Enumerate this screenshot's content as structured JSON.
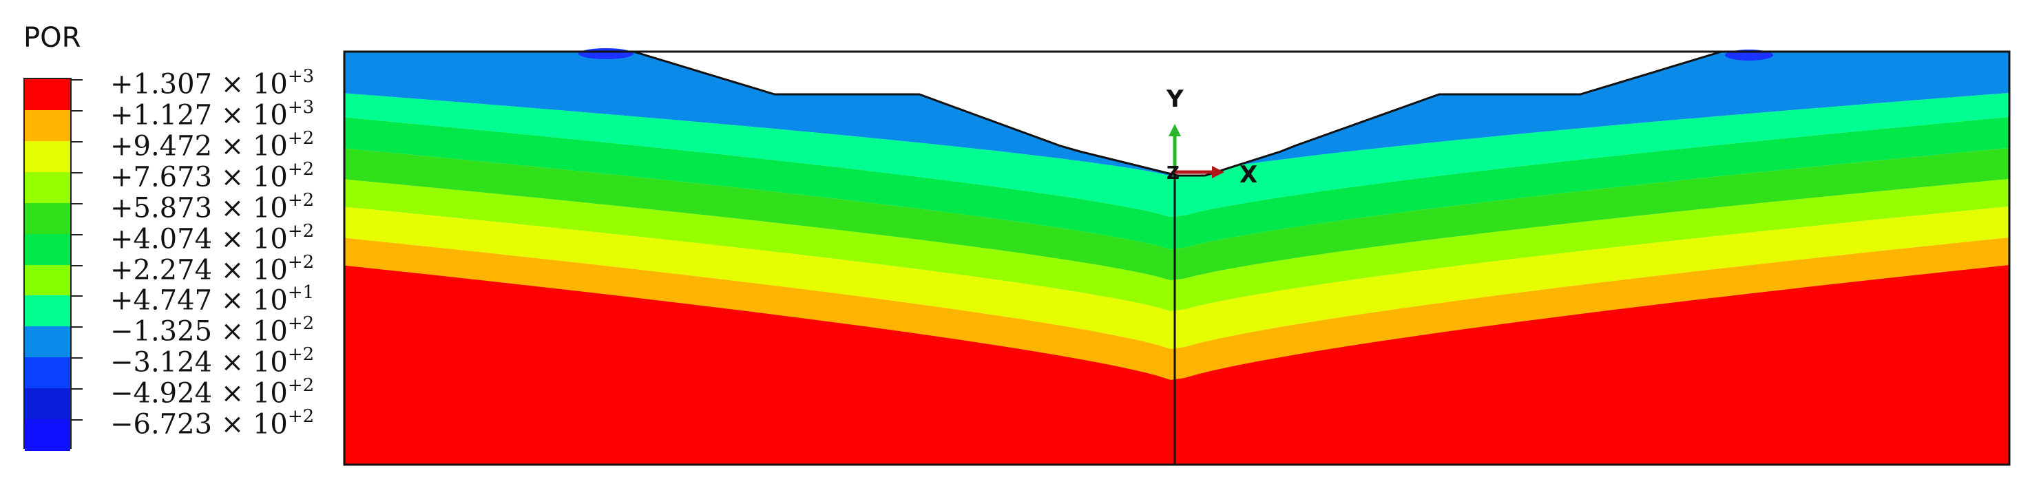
{
  "legend": {
    "title": "POR",
    "colors": [
      "#ff0000",
      "#ffb400",
      "#e6ff00",
      "#96ff00",
      "#30e01a",
      "#00e84a",
      "#86ff00",
      "#00ff90",
      "#0a8bea",
      "#0a40ff",
      "#0a1edc",
      "#1010ff"
    ],
    "labels": [
      {
        "mant": "+1.307",
        "exp": "+3"
      },
      {
        "mant": "+1.127",
        "exp": "+3"
      },
      {
        "mant": "+9.472",
        "exp": "+2"
      },
      {
        "mant": "+7.673",
        "exp": "+2"
      },
      {
        "mant": "+5.873",
        "exp": "+2"
      },
      {
        "mant": "+4.074",
        "exp": "+2"
      },
      {
        "mant": "+2.274",
        "exp": "+2"
      },
      {
        "mant": "+4.747",
        "exp": "+1"
      },
      {
        "mant": "−1.325",
        "exp": "+2"
      },
      {
        "mant": "−3.124",
        "exp": "+2"
      },
      {
        "mant": "−4.924",
        "exp": "+2"
      },
      {
        "mant": "−6.723",
        "exp": "+2"
      }
    ]
  },
  "axes": {
    "y_label": "Y",
    "x_label": "X",
    "z_label": "Z"
  },
  "contour_colors": [
    "#0a8bea",
    "#00ff90",
    "#00e84a",
    "#30e01a",
    "#96ff00",
    "#e6ff00",
    "#ffb400",
    "#ff0000"
  ]
}
